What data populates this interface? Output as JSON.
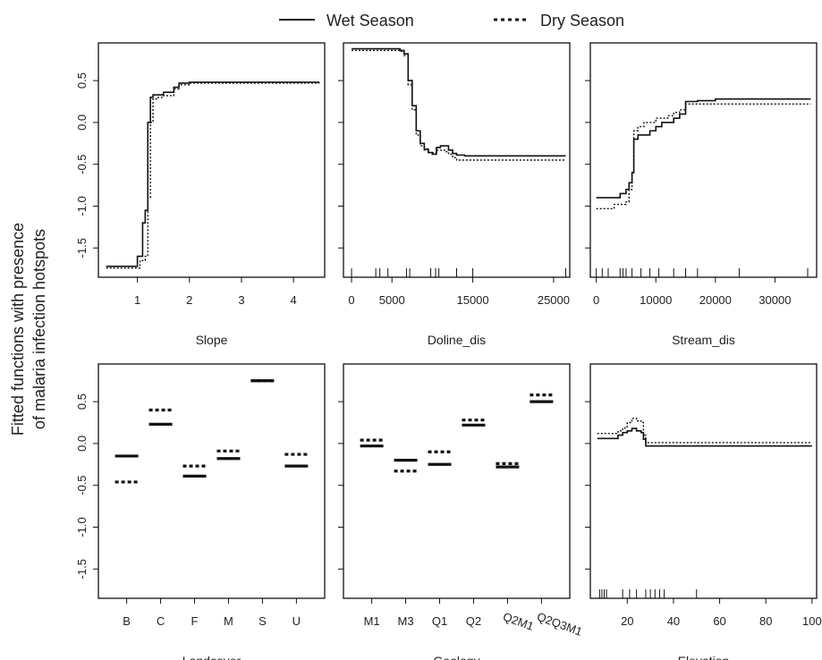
{
  "legend": {
    "wet_label": "Wet Season",
    "dry_label": "Dry Season"
  },
  "ylabel_lines": [
    "Fitted functions with presence",
    "of malaria infection hotspots"
  ],
  "chart_data": [
    {
      "type": "line",
      "xlabel": "Slope",
      "ylim": [
        -1.85,
        0.95
      ],
      "xlim": [
        0.25,
        4.6
      ],
      "xticks": [
        1,
        2,
        3,
        4
      ],
      "xtick_labels": [
        "1",
        "2",
        "3",
        "4"
      ],
      "yticks": [
        -1.5,
        -1.0,
        -0.5,
        0.0,
        0.5
      ],
      "ytick_labels": [
        "-1.5",
        "-1.0",
        "-0.5",
        "0.0",
        "0.5"
      ],
      "series": [
        {
          "name": "Wet Season",
          "style": "solid",
          "x": [
            0.4,
            0.95,
            1.0,
            1.1,
            1.15,
            1.2,
            1.25,
            1.3,
            1.4,
            1.5,
            1.6,
            1.7,
            1.8,
            2.0,
            4.5
          ],
          "y": [
            -1.72,
            -1.72,
            -1.6,
            -1.2,
            -1.05,
            0.0,
            0.3,
            0.33,
            0.33,
            0.36,
            0.36,
            0.42,
            0.47,
            0.48,
            0.48
          ]
        },
        {
          "name": "Dry Season",
          "style": "dotted",
          "x": [
            0.4,
            1.0,
            1.05,
            1.15,
            1.2,
            1.25,
            1.3,
            1.4,
            1.5,
            1.7,
            1.8,
            2.0,
            4.5
          ],
          "y": [
            -1.74,
            -1.74,
            -1.65,
            -1.6,
            -0.9,
            0.0,
            0.28,
            0.3,
            0.32,
            0.4,
            0.45,
            0.47,
            0.47
          ]
        }
      ],
      "rug": []
    },
    {
      "type": "line",
      "xlabel": "Doline_dis",
      "ylim": [
        -1.85,
        0.95
      ],
      "xlim": [
        -1000,
        27000
      ],
      "xticks": [
        0,
        5000,
        15000,
        25000
      ],
      "xtick_labels": [
        "0",
        "5000",
        "15000",
        "25000"
      ],
      "yticks": [
        -1.5,
        -1.0,
        -0.5,
        0.0,
        0.5
      ],
      "ytick_labels": [
        "",
        "",
        "",
        "",
        ""
      ],
      "series": [
        {
          "name": "Wet Season",
          "style": "solid",
          "x": [
            0,
            5500,
            6000,
            6500,
            7000,
            7500,
            8000,
            8500,
            9000,
            9500,
            10000,
            10500,
            11000,
            11500,
            12000,
            12500,
            13000,
            14000,
            26500
          ],
          "y": [
            0.88,
            0.88,
            0.86,
            0.82,
            0.5,
            0.2,
            -0.1,
            -0.25,
            -0.32,
            -0.36,
            -0.38,
            -0.3,
            -0.28,
            -0.28,
            -0.33,
            -0.37,
            -0.39,
            -0.4,
            -0.4
          ]
        },
        {
          "name": "Dry Season",
          "style": "dotted",
          "x": [
            0,
            5500,
            6000,
            6500,
            7000,
            7500,
            8000,
            8500,
            9000,
            9500,
            10000,
            10500,
            11000,
            11500,
            12000,
            12500,
            13000,
            14000,
            26500
          ],
          "y": [
            0.86,
            0.86,
            0.85,
            0.8,
            0.45,
            0.15,
            -0.15,
            -0.28,
            -0.33,
            -0.36,
            -0.36,
            -0.33,
            -0.33,
            -0.35,
            -0.38,
            -0.42,
            -0.45,
            -0.45,
            -0.45
          ]
        }
      ],
      "rug": [
        0,
        3000,
        3500,
        4500,
        6800,
        7200,
        9800,
        10400,
        10800,
        13000,
        15000,
        26500
      ]
    },
    {
      "type": "line",
      "xlabel": "Stream_dis",
      "ylim": [
        -1.85,
        0.95
      ],
      "xlim": [
        -1000,
        37000
      ],
      "xticks": [
        0,
        10000,
        20000,
        30000
      ],
      "xtick_labels": [
        "0",
        "10000",
        "20000",
        "30000"
      ],
      "yticks": [
        -1.5,
        -1.0,
        -0.5,
        0.0,
        0.5
      ],
      "ytick_labels": [
        "",
        "",
        "",
        "",
        ""
      ],
      "series": [
        {
          "name": "Wet Season",
          "style": "solid",
          "x": [
            0,
            3500,
            4000,
            5000,
            5500,
            6000,
            6300,
            7000,
            8000,
            9000,
            10000,
            11000,
            12000,
            13000,
            14000,
            15000,
            17000,
            20000,
            36000
          ],
          "y": [
            -0.9,
            -0.9,
            -0.85,
            -0.8,
            -0.72,
            -0.6,
            -0.2,
            -0.15,
            -0.15,
            -0.1,
            -0.05,
            0.0,
            0.0,
            0.05,
            0.1,
            0.25,
            0.26,
            0.28,
            0.28
          ]
        },
        {
          "name": "Dry Season",
          "style": "dotted",
          "x": [
            0,
            2500,
            3000,
            5000,
            5500,
            6000,
            6300,
            7000,
            8000,
            10000,
            12000,
            13000,
            14000,
            15000,
            17000,
            36000
          ],
          "y": [
            -1.03,
            -1.03,
            -0.98,
            -0.95,
            -0.8,
            -0.6,
            -0.1,
            -0.05,
            0.0,
            0.05,
            0.08,
            0.12,
            0.15,
            0.22,
            0.22,
            0.22
          ]
        }
      ],
      "rug": [
        0,
        1000,
        2000,
        4000,
        4500,
        5000,
        6000,
        7500,
        9000,
        10500,
        13000,
        15000,
        17000,
        24000,
        35500
      ]
    },
    {
      "type": "bar",
      "xlabel": "Landcover",
      "ylim": [
        -1.85,
        0.95
      ],
      "categories": [
        "B",
        "C",
        "F",
        "M",
        "S",
        "U"
      ],
      "yticks": [
        -1.5,
        -1.0,
        -0.5,
        0.0,
        0.5
      ],
      "ytick_labels": [
        "-1.5",
        "-1.0",
        "-0.5",
        "0.0",
        "0.5"
      ],
      "series": [
        {
          "name": "Wet Season",
          "style": "solid",
          "values": [
            -0.15,
            0.23,
            -0.39,
            -0.18,
            0.75,
            -0.27
          ]
        },
        {
          "name": "Dry Season",
          "style": "dotted",
          "values": [
            -0.46,
            0.4,
            -0.27,
            -0.09,
            0.75,
            -0.13
          ]
        }
      ]
    },
    {
      "type": "bar",
      "xlabel": "Geology",
      "ylim": [
        -1.85,
        0.95
      ],
      "categories": [
        "M1",
        "M3",
        "Q1",
        "Q2",
        "Q2M1",
        "Q2Q3M1"
      ],
      "rotate_labels": [
        false,
        false,
        false,
        false,
        true,
        true
      ],
      "yticks": [
        -1.5,
        -1.0,
        -0.5,
        0.0,
        0.5
      ],
      "ytick_labels": [
        "",
        "",
        "",
        "",
        ""
      ],
      "series": [
        {
          "name": "Wet Season",
          "style": "solid",
          "values": [
            -0.03,
            -0.2,
            -0.25,
            0.22,
            -0.28,
            0.5
          ]
        },
        {
          "name": "Dry Season",
          "style": "dotted",
          "values": [
            0.04,
            -0.33,
            -0.1,
            0.28,
            -0.24,
            0.58
          ]
        }
      ]
    },
    {
      "type": "line",
      "xlabel": "Elevation",
      "ylim": [
        -1.85,
        0.95
      ],
      "xlim": [
        4,
        102
      ],
      "xticks": [
        20,
        40,
        60,
        80,
        100
      ],
      "xtick_labels": [
        "20",
        "40",
        "60",
        "80",
        "100"
      ],
      "yticks": [
        -1.5,
        -1.0,
        -0.5,
        0.0,
        0.5
      ],
      "ytick_labels": [
        "",
        "",
        "",
        "",
        ""
      ],
      "series": [
        {
          "name": "Wet Season",
          "style": "solid",
          "x": [
            7,
            14,
            16,
            18,
            20,
            22,
            24,
            26,
            27,
            28,
            100
          ],
          "y": [
            0.06,
            0.06,
            0.1,
            0.13,
            0.15,
            0.18,
            0.15,
            0.13,
            0.05,
            -0.03,
            -0.03
          ]
        },
        {
          "name": "Dry Season",
          "style": "dotted",
          "x": [
            7,
            14,
            16,
            18,
            19,
            20,
            22,
            24,
            26,
            27,
            28,
            100
          ],
          "y": [
            0.12,
            0.12,
            0.15,
            0.18,
            0.2,
            0.25,
            0.3,
            0.27,
            0.25,
            0.1,
            0.01,
            0.01
          ]
        }
      ],
      "rug": [
        8,
        9,
        10,
        11,
        18,
        21,
        24,
        28,
        30,
        32,
        34,
        36,
        50
      ]
    }
  ]
}
